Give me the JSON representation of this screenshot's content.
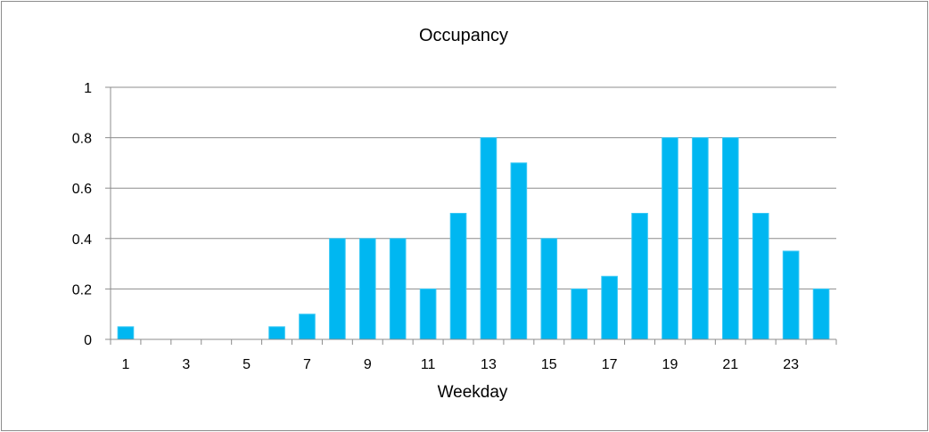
{
  "chart_data": {
    "type": "bar",
    "title": "Occupancy",
    "xlabel": "Weekday",
    "ylabel": "",
    "categories": [
      "1",
      "2",
      "3",
      "4",
      "5",
      "6",
      "7",
      "8",
      "9",
      "10",
      "11",
      "12",
      "13",
      "14",
      "15",
      "16",
      "17",
      "18",
      "19",
      "20",
      "21",
      "22",
      "23",
      "24"
    ],
    "x_tick_labels": [
      "1",
      "3",
      "5",
      "7",
      "9",
      "11",
      "13",
      "15",
      "17",
      "19",
      "21",
      "23"
    ],
    "values": [
      0.05,
      0,
      0,
      0,
      0,
      0.05,
      0.1,
      0.4,
      0.4,
      0.4,
      0.2,
      0.5,
      0.8,
      0.7,
      0.4,
      0.2,
      0.25,
      0.5,
      0.8,
      0.8,
      0.8,
      0.5,
      0.35,
      0.2
    ],
    "ylim": [
      0,
      1
    ],
    "y_ticks": [
      "0",
      "0.2",
      "0.4",
      "0.6",
      "0.8",
      "1"
    ],
    "grid": true,
    "legend": "none",
    "colors": {
      "bar_fill": "#00b7f1",
      "bar_stroke": "#39c8f5",
      "grid": "#8c8c8c",
      "axis": "#8c8c8c"
    }
  }
}
